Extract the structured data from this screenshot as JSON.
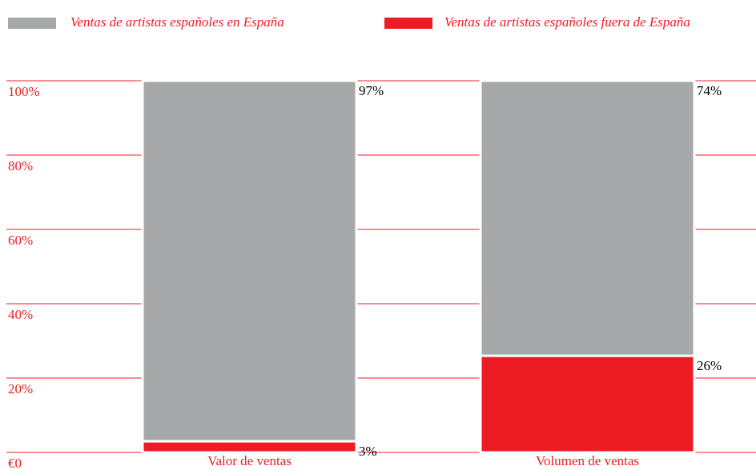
{
  "chart_data": {
    "type": "stacked_bar",
    "categories": [
      "Valor de ventas",
      "Volumen de ventas"
    ],
    "series": [
      {
        "name": "Ventas de artistas españoles en España",
        "color": "#a7a8aa",
        "values": [
          97,
          74
        ],
        "value_labels": [
          "97%",
          "74%"
        ]
      },
      {
        "name": "Ventas de artistas españoles fuera de España",
        "color": "#ed1c24",
        "values": [
          3,
          26
        ],
        "value_labels": [
          "3%",
          "26%"
        ]
      }
    ],
    "ylim": [
      0,
      100
    ],
    "yticks": [
      {
        "value": 0,
        "label": "€0"
      },
      {
        "value": 20,
        "label": "20%"
      },
      {
        "value": 40,
        "label": "40%"
      },
      {
        "value": 60,
        "label": "60%"
      },
      {
        "value": 80,
        "label": "80%"
      },
      {
        "value": 100,
        "label": "100%"
      }
    ],
    "grid": true,
    "grid_color": "#ed1c24",
    "legend": "top"
  }
}
